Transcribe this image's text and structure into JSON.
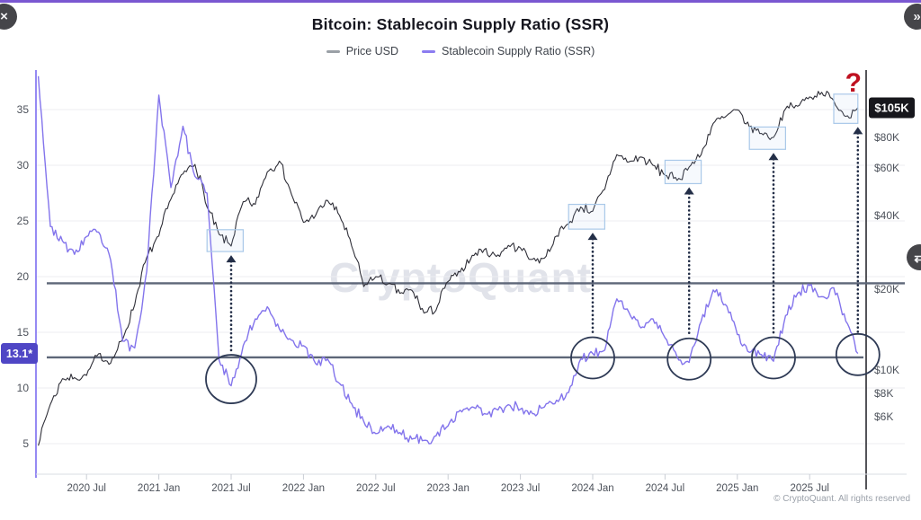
{
  "header": {
    "title": "Bitcoin: Stablecoin Supply Ratio (SSR)"
  },
  "legend": {
    "items": [
      {
        "label": "Price USD",
        "color": "#9aa0a6"
      },
      {
        "label": "Stablecoin Supply Ratio (SSR)",
        "color": "#8b7cf0"
      }
    ]
  },
  "watermark": {
    "text": "CryptoQuant"
  },
  "footer": {
    "copyright": "© CryptoQuant. All rights reserved"
  },
  "overlay": {
    "close_icon": "×",
    "next_icon": "»",
    "side_icon": "⇄"
  },
  "badges": {
    "ssr_current": "13.1*",
    "ssr_current_value": 13.1,
    "ssr_badge_color": "#4f46c5",
    "price_current": "$105K",
    "price_current_value": 105000,
    "price_badge_color": "#17171c"
  },
  "chart_data": {
    "type": "line",
    "title": "Bitcoin: Stablecoin Supply Ratio (SSR)",
    "legend_position": "top",
    "x": [
      "2020-03",
      "2020-04",
      "2020-05",
      "2020-06",
      "2020-07",
      "2020-08",
      "2020-09",
      "2020-10",
      "2020-11",
      "2020-12",
      "2021-01",
      "2021-02",
      "2021-03",
      "2021-04",
      "2021-05",
      "2021-06",
      "2021-07",
      "2021-08",
      "2021-09",
      "2021-10",
      "2021-11",
      "2021-12",
      "2022-01",
      "2022-02",
      "2022-03",
      "2022-04",
      "2022-05",
      "2022-06",
      "2022-07",
      "2022-08",
      "2022-09",
      "2022-10",
      "2022-11",
      "2022-12",
      "2023-01",
      "2023-02",
      "2023-03",
      "2023-04",
      "2023-05",
      "2023-06",
      "2023-07",
      "2023-08",
      "2023-09",
      "2023-10",
      "2023-11",
      "2023-12",
      "2024-01",
      "2024-02",
      "2024-03",
      "2024-04",
      "2024-05",
      "2024-06",
      "2024-07",
      "2024-08",
      "2024-09",
      "2024-10",
      "2024-11",
      "2024-12",
      "2025-01",
      "2025-02",
      "2025-03",
      "2025-04",
      "2025-05",
      "2025-06",
      "2025-07",
      "2025-08",
      "2025-09",
      "2025-10",
      "2025-11"
    ],
    "series": [
      {
        "name": "Price USD",
        "axis": "right",
        "color": "#2f2f38",
        "values": [
          4200,
          7000,
          9200,
          9300,
          9500,
          11500,
          10600,
          13000,
          17500,
          27000,
          33000,
          46000,
          57000,
          62000,
          43000,
          33500,
          30000,
          45000,
          44000,
          58000,
          64000,
          48000,
          37500,
          40000,
          45500,
          40000,
          30000,
          20500,
          22500,
          21000,
          19300,
          19800,
          16300,
          16700,
          21500,
          23500,
          27500,
          29000,
          27200,
          30200,
          29500,
          26500,
          26800,
          33000,
          37000,
          43000,
          41500,
          50000,
          68000,
          63500,
          66500,
          61500,
          56500,
          54000,
          60500,
          68000,
          91000,
          96500,
          103000,
          88000,
          83000,
          80000,
          104000,
          106500,
          116000,
          121000,
          112000,
          97000,
          105000
        ]
      },
      {
        "name": "Stablecoin Supply Ratio (SSR)",
        "axis": "left",
        "color": "#8374ec",
        "values": [
          38.0,
          24.5,
          23.2,
          22.0,
          23.6,
          24.0,
          21.5,
          14.2,
          13.6,
          20.5,
          36.3,
          28.0,
          33.5,
          29.0,
          27.5,
          12.5,
          10.2,
          13.8,
          16.2,
          17.3,
          15.3,
          14.3,
          13.8,
          12.2,
          12.6,
          10.4,
          8.6,
          7.0,
          5.9,
          6.6,
          6.0,
          5.4,
          5.3,
          5.7,
          6.6,
          8.0,
          8.3,
          7.7,
          8.1,
          8.5,
          8.1,
          7.7,
          8.3,
          8.9,
          9.6,
          12.6,
          13.1,
          13.4,
          18.0,
          16.8,
          15.4,
          16.2,
          14.5,
          12.8,
          12.3,
          16.0,
          18.8,
          17.5,
          14.8,
          13.2,
          13.0,
          12.4,
          16.5,
          18.5,
          19.2,
          18.2,
          19.0,
          16.0,
          13.1
        ]
      }
    ],
    "left_axis": {
      "label": "Stablecoin Supply Ratio",
      "ticks": [
        35,
        30,
        25,
        20,
        15,
        10,
        5
      ],
      "range": [
        3.5,
        38.5
      ]
    },
    "right_axis": {
      "label": "Price USD",
      "scale": "log",
      "tick_labels": [
        "$105K",
        "$80K",
        "$60K",
        "$40K",
        "$20K",
        "$10K",
        "$8K",
        "$6K"
      ],
      "tick_values": [
        105000,
        80000,
        60000,
        40000,
        20000,
        10000,
        8000,
        6000
      ]
    },
    "x_ticks": [
      "2020 Jul",
      "2021 Jan",
      "2021 Jul",
      "2022 Jan",
      "2022 Jul",
      "2023 Jan",
      "2023 Jul",
      "2024 Jan",
      "2024 Jul",
      "2025 Jan",
      "2025 Jul"
    ],
    "support_lines": [
      {
        "ssr": 19.4
      },
      {
        "ssr": 12.75,
        "badge": "13.1*"
      }
    ],
    "annotations": {
      "question_mark": {
        "text": "?",
        "month": "2025-11",
        "color": "#bf1120"
      },
      "circled_ssr_dips": [
        {
          "month": "2021-07",
          "ssr": 10.8
        },
        {
          "month": "2024-01",
          "ssr": 12.7
        },
        {
          "month": "2024-09",
          "ssr": 12.6
        },
        {
          "month": "2025-04",
          "ssr": 12.7
        },
        {
          "month": "2025-11",
          "ssr": 13.0
        }
      ],
      "boxed_price_dips": [
        {
          "from": "2021-05",
          "to": "2021-08",
          "price_low": 28500,
          "price_high": 35000
        },
        {
          "from": "2023-11",
          "to": "2024-02",
          "price_low": 35200,
          "price_high": 44000
        },
        {
          "from": "2024-07",
          "to": "2024-10",
          "price_low": 52500,
          "price_high": 64500
        },
        {
          "from": "2025-02",
          "to": "2025-05",
          "price_low": 71500,
          "price_high": 88000
        },
        {
          "from": "2025-09",
          "to": "2025-11",
          "price_low": 91000,
          "price_high": 119000
        }
      ]
    }
  }
}
